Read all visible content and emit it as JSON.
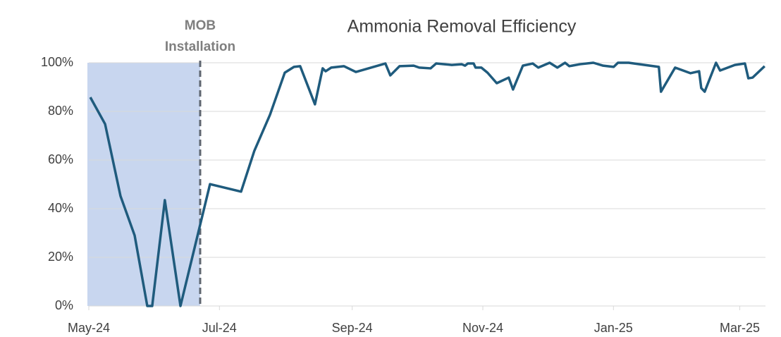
{
  "chart_data": {
    "type": "line",
    "title": "Ammonia Removal Efficiency",
    "annotation": {
      "lines": [
        "MOB",
        "Installation"
      ],
      "x": 52
    },
    "x": [
      0.7,
      7.6,
      14.8,
      21.4,
      27.3,
      29.6,
      35.5,
      42.8,
      56.6,
      71.1,
      77.3,
      84.6,
      91.5,
      95.8,
      98.7,
      105.6,
      109.2,
      110.6,
      113.2,
      119.1,
      124.7,
      138.5,
      140.8,
      145.1,
      151.7,
      154.3,
      159.6,
      162.2,
      169.5,
      174.1,
      175.7,
      177.0,
      179.7,
      180.6,
      183.3,
      186.2,
      190.5,
      196.1,
      198.1,
      202.7,
      207.3,
      209.9,
      215.2,
      218.8,
      222.4,
      224.4,
      225.7,
      229.4,
      235.6,
      240.2,
      245.1,
      247.1,
      252.1,
      266.2,
      267.2,
      273.8,
      281.0,
      285.0,
      286.0,
      287.6,
      292.9,
      294.8,
      301.7,
      306.4,
      308.0,
      310.0,
      315.6
    ],
    "series": [
      {
        "name": "Ammonia Removal Efficiency",
        "color": "#1f5b7d",
        "values": [
          85.8,
          74.8,
          45.2,
          29.0,
          0,
          0,
          43.5,
          0,
          50.1,
          47.0,
          63.8,
          78.6,
          95.9,
          98.3,
          98.6,
          82.9,
          97.7,
          96.5,
          98.0,
          98.6,
          96.2,
          99.7,
          94.8,
          98.6,
          98.8,
          98.0,
          97.7,
          99.7,
          99.1,
          99.4,
          98.8,
          99.7,
          99.7,
          98.0,
          98.0,
          95.9,
          91.6,
          93.9,
          89.0,
          98.8,
          99.7,
          98.0,
          100,
          98.0,
          100,
          98.6,
          98.8,
          99.4,
          100,
          98.8,
          98.3,
          100,
          100,
          98.3,
          88.1,
          98.0,
          95.7,
          96.5,
          89.6,
          88.1,
          100,
          96.8,
          99.1,
          99.7,
          93.6,
          93.9,
          98.6
        ]
      }
    ],
    "xlim": [
      0,
      316
    ],
    "xticks": [
      {
        "value": 0,
        "label": "May-24"
      },
      {
        "value": 61,
        "label": "Jul-24"
      },
      {
        "value": 123,
        "label": "Sep-24"
      },
      {
        "value": 184,
        "label": "Nov-24"
      },
      {
        "value": 245,
        "label": "Jan-25"
      },
      {
        "value": 304,
        "label": "Mar-25"
      }
    ],
    "ylim": [
      0,
      100
    ],
    "yticks": [
      {
        "value": 0,
        "label": "0%"
      },
      {
        "value": 20,
        "label": "20%"
      },
      {
        "value": 40,
        "label": "40%"
      },
      {
        "value": 60,
        "label": "60%"
      },
      {
        "value": 80,
        "label": "80%"
      },
      {
        "value": 100,
        "label": "100%"
      }
    ],
    "grid": true,
    "shade_color": "#c8d6ef"
  }
}
